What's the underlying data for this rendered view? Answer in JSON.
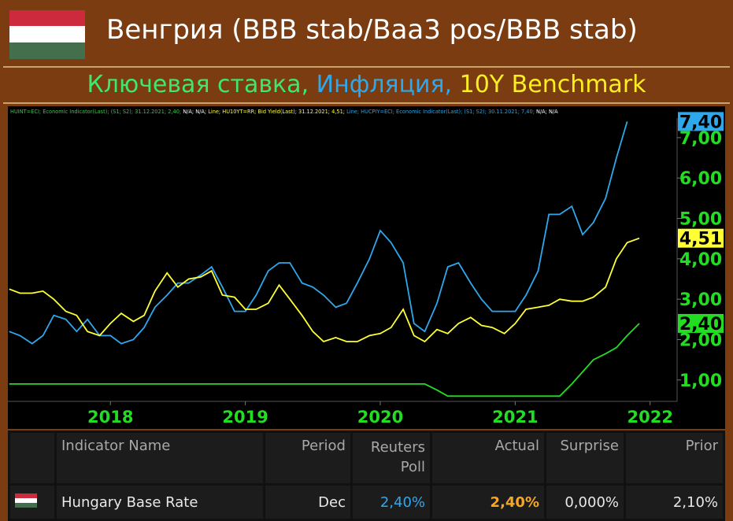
{
  "title": "Венгрия (BBB stab/Baa3 pos/BBB stab)",
  "subtitle": [
    {
      "text": "Ключевая ставка,",
      "color": "#3ee86a"
    },
    {
      "text": " Инфляция,",
      "color": "#2ea8ec"
    },
    {
      "text": " 10Y Benchmark",
      "color": "#ffee22"
    }
  ],
  "chart_data": {
    "type": "line",
    "info_line": [
      {
        "text": "HUINT=ECI; Economic Indicator(Last); (S1; S2); 31.12.2021; 2,40;",
        "color": "#2ecc40"
      },
      {
        "text": " N/A; N/A; ",
        "color": "#ffffff"
      },
      {
        "text": "Line; HU10YT=RR; Bid Yield(Last); 31.12.2021; 4,51;",
        "color": "#ffff33"
      },
      {
        "text": " Line; HUCPIY=ECI; Economic Indicator(Last); (S1; S2); 30.11.2021; 7,40;",
        "color": "#29a3e6"
      },
      {
        "text": " N/A; N/A",
        "color": "#ffffff"
      }
    ],
    "x": [
      2017.25,
      2017.33,
      2017.42,
      2017.5,
      2017.58,
      2017.67,
      2017.75,
      2017.83,
      2017.92,
      2018,
      2018.08,
      2018.17,
      2018.25,
      2018.33,
      2018.42,
      2018.5,
      2018.58,
      2018.67,
      2018.75,
      2018.83,
      2018.92,
      2019,
      2019.08,
      2019.17,
      2019.25,
      2019.33,
      2019.42,
      2019.5,
      2019.58,
      2019.67,
      2019.75,
      2019.83,
      2019.92,
      2020,
      2020.08,
      2020.17,
      2020.25,
      2020.33,
      2020.42,
      2020.5,
      2020.58,
      2020.67,
      2020.75,
      2020.83,
      2020.92,
      2021,
      2021.08,
      2021.17,
      2021.25,
      2021.33,
      2021.42,
      2021.5,
      2021.58,
      2021.67,
      2021.75,
      2021.83,
      2021.92
    ],
    "series": [
      {
        "name": "HUCPIY",
        "color": "#2ea8ec",
        "end_label": "7,40",
        "values": [
          2.2,
          2.1,
          1.9,
          2.1,
          2.6,
          2.5,
          2.2,
          2.5,
          2.1,
          2.1,
          1.9,
          2.0,
          2.3,
          2.8,
          3.1,
          3.4,
          3.4,
          3.6,
          3.8,
          3.3,
          2.7,
          2.7,
          3.1,
          3.7,
          3.9,
          3.9,
          3.4,
          3.3,
          3.1,
          2.8,
          2.9,
          3.4,
          4.0,
          4.7,
          4.4,
          3.9,
          2.4,
          2.2,
          2.9,
          3.8,
          3.9,
          3.4,
          3.0,
          2.7,
          2.7,
          2.7,
          3.1,
          3.7,
          5.1,
          5.1,
          5.3,
          4.6,
          4.9,
          5.5,
          6.5,
          7.4,
          null
        ]
      },
      {
        "name": "HU10YT",
        "color": "#ffff33",
        "end_label": "4,51",
        "values": [
          3.25,
          3.15,
          3.15,
          3.2,
          3.0,
          2.7,
          2.6,
          2.2,
          2.1,
          2.4,
          2.65,
          2.45,
          2.6,
          3.2,
          3.65,
          3.3,
          3.5,
          3.55,
          3.7,
          3.1,
          3.05,
          2.75,
          2.75,
          2.9,
          3.35,
          3.0,
          2.6,
          2.2,
          1.95,
          2.05,
          1.95,
          1.95,
          2.1,
          2.15,
          2.3,
          2.75,
          2.1,
          1.95,
          2.25,
          2.15,
          2.4,
          2.55,
          2.35,
          2.3,
          2.15,
          2.4,
          2.75,
          2.8,
          2.85,
          3.0,
          2.95,
          2.95,
          3.05,
          3.3,
          4.0,
          4.4,
          4.51
        ]
      },
      {
        "name": "HUINT",
        "color": "#22dd22",
        "end_label": "2,40",
        "values": [
          0.9,
          0.9,
          0.9,
          0.9,
          0.9,
          0.9,
          0.9,
          0.9,
          0.9,
          0.9,
          0.9,
          0.9,
          0.9,
          0.9,
          0.9,
          0.9,
          0.9,
          0.9,
          0.9,
          0.9,
          0.9,
          0.9,
          0.9,
          0.9,
          0.9,
          0.9,
          0.9,
          0.9,
          0.9,
          0.9,
          0.9,
          0.9,
          0.9,
          0.9,
          0.9,
          0.9,
          0.9,
          0.9,
          0.75,
          0.6,
          0.6,
          0.6,
          0.6,
          0.6,
          0.6,
          0.6,
          0.6,
          0.6,
          0.6,
          0.6,
          0.9,
          1.2,
          1.5,
          1.65,
          1.8,
          2.1,
          2.4
        ]
      }
    ],
    "xlim": [
      2017.24,
      2022.2
    ],
    "xticks": [
      2018,
      2019,
      2020,
      2021,
      2022
    ],
    "ylim": [
      0.47,
      7.68
    ],
    "yticks": [
      {
        "value": 1,
        "label": "1,00"
      },
      {
        "value": 2,
        "label": "2,00"
      },
      {
        "value": 3,
        "label": "3,00"
      },
      {
        "value": 4,
        "label": "4,00"
      },
      {
        "value": 5,
        "label": "5,00"
      },
      {
        "value": 6,
        "label": "6,00"
      },
      {
        "value": 7,
        "label": "7,00"
      }
    ]
  },
  "table": {
    "headers": [
      "Indicator Name",
      "Period",
      "Reuters Poll",
      "Actual",
      "Surprise",
      "Prior"
    ],
    "rows": [
      [
        "Hungary Base Rate",
        "Dec",
        "2,40%",
        "2,40%",
        "0,000%",
        "2,10%"
      ]
    ]
  }
}
